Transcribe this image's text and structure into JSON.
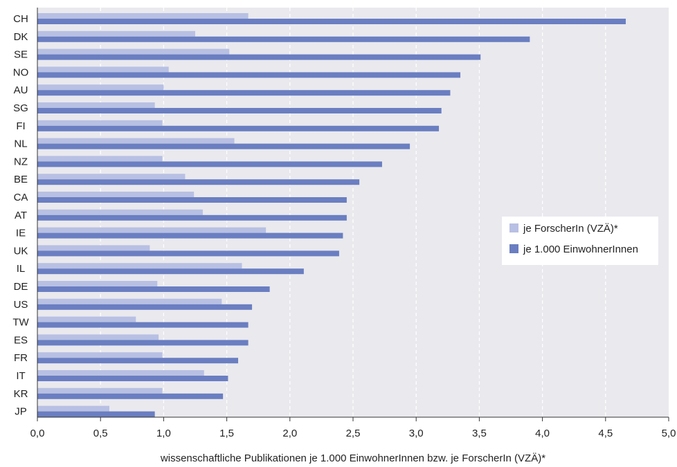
{
  "chart_data": {
    "type": "bar",
    "orientation": "horizontal",
    "categories": [
      "CH",
      "DK",
      "SE",
      "NO",
      "AU",
      "SG",
      "FI",
      "NL",
      "NZ",
      "BE",
      "CA",
      "AT",
      "IE",
      "UK",
      "IL",
      "DE",
      "US",
      "TW",
      "ES",
      "FR",
      "IT",
      "KR",
      "JP"
    ],
    "series": [
      {
        "name": "je ForscherIn (VZÄ)*",
        "color": "#b8c0e3",
        "values": [
          1.67,
          1.25,
          1.52,
          1.04,
          1.0,
          0.93,
          0.99,
          1.56,
          0.99,
          1.17,
          1.24,
          1.31,
          1.81,
          0.89,
          1.62,
          0.95,
          1.46,
          0.78,
          0.96,
          0.99,
          1.32,
          0.99,
          0.57
        ]
      },
      {
        "name": "je 1.000 EinwohnerInnen",
        "color": "#6a7ec1",
        "values": [
          4.66,
          3.9,
          3.51,
          3.35,
          3.27,
          3.2,
          3.18,
          2.95,
          2.73,
          2.55,
          2.45,
          2.45,
          2.42,
          2.39,
          2.11,
          1.84,
          1.7,
          1.67,
          1.67,
          1.59,
          1.51,
          1.47,
          0.93
        ]
      }
    ],
    "xlim": [
      0,
      5
    ],
    "xticks": [
      "0,0",
      "0,5",
      "1,0",
      "1,5",
      "2,0",
      "2,5",
      "3,0",
      "3,5",
      "4,0",
      "4,5",
      "5,0"
    ],
    "xlabel": "wissenschaftliche Publikationen je 1.000 EinwohnerInnen bzw. je ForscherIn (VZÄ)*",
    "grid": "vertical-dashed",
    "legend_position": "right",
    "plot_background": "#e9e9ee"
  }
}
